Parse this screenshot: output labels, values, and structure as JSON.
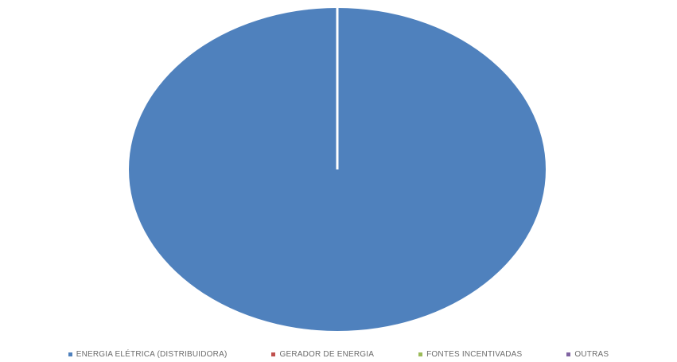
{
  "chart_data": {
    "type": "pie",
    "categories": [
      "ENERGIA ELÉTRICA (DISTRIBUIDORA)",
      "GERADOR DE ENERGIA",
      "FONTES INCENTIVADAS",
      "OUTRAS"
    ],
    "values": [
      100,
      0,
      0,
      0
    ],
    "colors": [
      "#4f81bd",
      "#c0504d",
      "#9bbb59",
      "#8064a2"
    ],
    "title": "",
    "legend_position": "bottom"
  }
}
